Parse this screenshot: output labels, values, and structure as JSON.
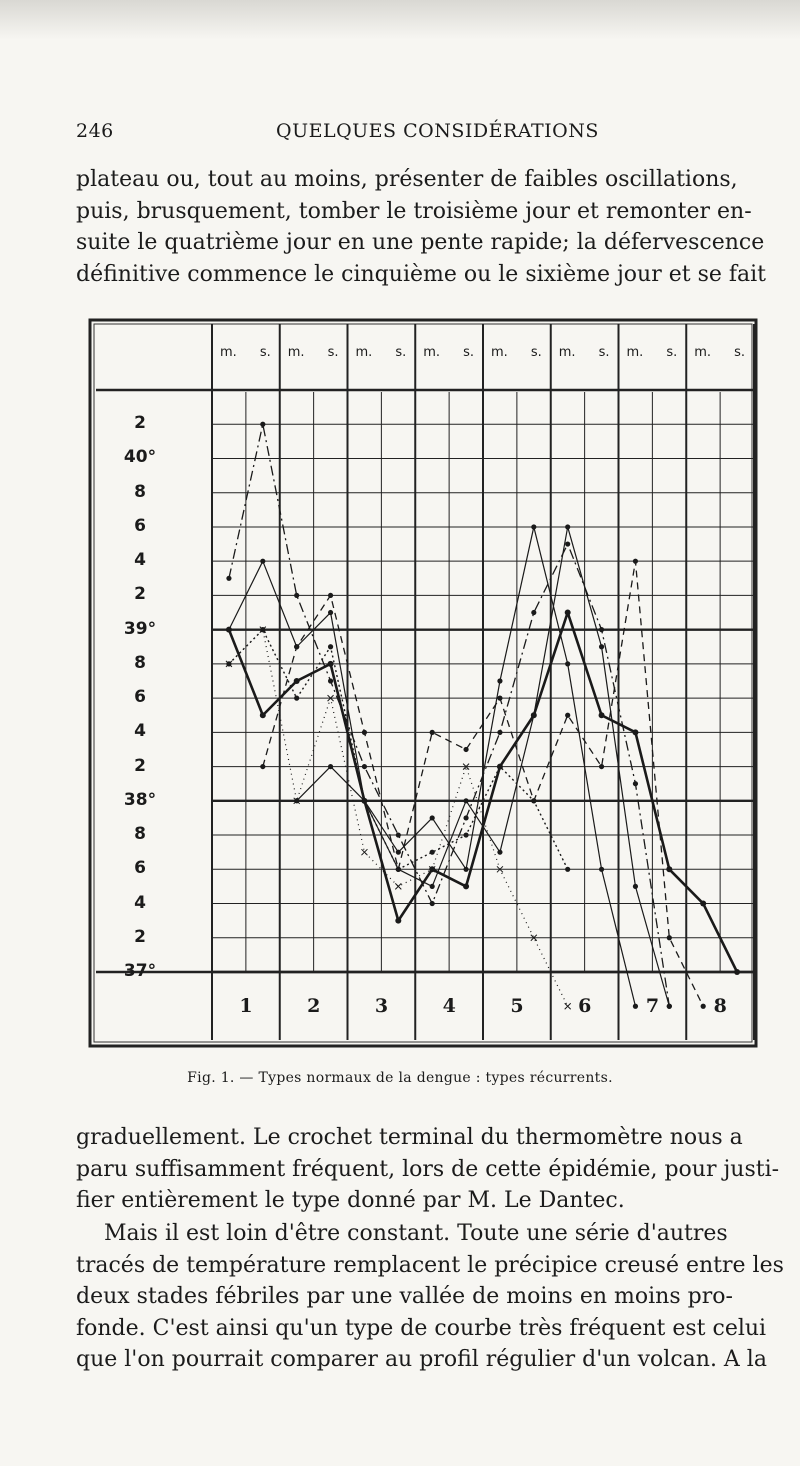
{
  "header": {
    "page_number": "246",
    "running_title": "QUELQUES CONSIDÉRATIONS"
  },
  "paragraph_1": {
    "lines": [
      "plateau ou, tout au moins, présenter de faibles oscillations,",
      "puis, brusquement, tomber le troisième jour et remonter en-",
      "suite le quatrième jour en une pente rapide; la défervescence",
      "définitive commence le cinquième ou le sixième jour et se fait"
    ]
  },
  "figure": {
    "column_headers": [
      "m.",
      "s.",
      "m.",
      "s.",
      "m.",
      "s.",
      "m.",
      "s.",
      "m.",
      "s.",
      "m.",
      "s.",
      "m.",
      "s.",
      "m.",
      "s."
    ],
    "day_labels": [
      "1",
      "2",
      "3",
      "4",
      "5",
      "6",
      "7",
      "8"
    ],
    "tick_labels": [
      "2",
      "40°",
      "8",
      "6",
      "4",
      "2",
      "39°",
      "8",
      "6",
      "4",
      "2",
      "38°",
      "8",
      "6",
      "4",
      "2",
      "37°"
    ],
    "caption": "Fig. 1. — Types normaux de la dengue : types récurrents."
  },
  "chart_data": {
    "type": "line",
    "title": "",
    "x_categories": [
      "1 m.",
      "1 s.",
      "2 m.",
      "2 s.",
      "3 m.",
      "3 s.",
      "4 m.",
      "4 s.",
      "5 m.",
      "5 s.",
      "6 m.",
      "6 s.",
      "7 m.",
      "7 s.",
      "8 m.",
      "8 s."
    ],
    "ylim": [
      37.0,
      40.4
    ],
    "y_unit": "°",
    "grid": true,
    "series": [
      {
        "style": "thick solid",
        "points": [
          [
            0,
            39.0
          ],
          [
            1,
            38.5
          ],
          [
            2,
            38.7
          ],
          [
            3,
            38.8
          ],
          [
            4,
            38.0
          ],
          [
            5,
            37.3
          ],
          [
            6,
            37.6
          ],
          [
            7,
            37.5
          ],
          [
            8,
            38.2
          ],
          [
            9,
            38.5
          ],
          [
            10,
            39.1
          ],
          [
            11,
            38.5
          ],
          [
            12,
            38.4
          ],
          [
            13,
            37.6
          ],
          [
            14,
            37.4
          ],
          [
            15,
            37.0
          ]
        ]
      },
      {
        "style": "thin solid",
        "points": [
          [
            0,
            39.0
          ],
          [
            1,
            39.4
          ],
          [
            2,
            38.9
          ],
          [
            3,
            39.1
          ],
          [
            4,
            38.0
          ],
          [
            5,
            37.7
          ],
          [
            6,
            37.9
          ],
          [
            7,
            37.6
          ],
          [
            8,
            38.7
          ],
          [
            9,
            39.6
          ],
          [
            10,
            38.8
          ],
          [
            11,
            37.6
          ],
          [
            12,
            36.8
          ]
        ]
      },
      {
        "style": "thin solid",
        "points": [
          [
            2,
            38.0
          ],
          [
            3,
            38.2
          ],
          [
            4,
            38.0
          ],
          [
            5,
            37.6
          ],
          [
            6,
            37.5
          ],
          [
            7,
            38.0
          ],
          [
            8,
            37.7
          ],
          [
            9,
            38.5
          ],
          [
            10,
            39.6
          ],
          [
            11,
            38.9
          ],
          [
            12,
            37.5
          ],
          [
            13,
            36.8
          ]
        ]
      },
      {
        "style": "dash-dot",
        "points": [
          [
            0,
            39.3
          ],
          [
            1,
            40.2
          ],
          [
            2,
            39.2
          ],
          [
            3,
            38.7
          ],
          [
            4,
            38.2
          ],
          [
            5,
            37.8
          ],
          [
            6,
            37.4
          ],
          [
            7,
            37.9
          ],
          [
            8,
            38.4
          ],
          [
            9,
            39.1
          ],
          [
            10,
            39.5
          ],
          [
            11,
            39.0
          ],
          [
            12,
            38.1
          ],
          [
            13,
            36.8
          ]
        ]
      },
      {
        "style": "dashed",
        "points": [
          [
            1,
            38.2
          ],
          [
            2,
            38.9
          ],
          [
            3,
            39.2
          ],
          [
            4,
            38.4
          ],
          [
            5,
            37.6
          ],
          [
            6,
            38.4
          ],
          [
            7,
            38.3
          ],
          [
            8,
            38.6
          ],
          [
            9,
            38.0
          ],
          [
            10,
            38.5
          ],
          [
            11,
            38.2
          ],
          [
            12,
            39.4
          ],
          [
            13,
            37.2
          ],
          [
            14,
            36.8
          ]
        ]
      },
      {
        "style": "dotted (points)",
        "points": [
          [
            0,
            38.8
          ],
          [
            1,
            39.0
          ],
          [
            2,
            38.6
          ],
          [
            3,
            38.9
          ],
          [
            4,
            38.0
          ],
          [
            5,
            37.6
          ],
          [
            6,
            37.7
          ],
          [
            7,
            37.8
          ],
          [
            8,
            38.2
          ],
          [
            9,
            38.0
          ],
          [
            10,
            37.6
          ]
        ]
      },
      {
        "style": "crossed",
        "points": [
          [
            0,
            38.8
          ],
          [
            1,
            39.0
          ],
          [
            2,
            38.0
          ],
          [
            3,
            38.6
          ],
          [
            4,
            37.7
          ],
          [
            5,
            37.5
          ],
          [
            6,
            37.6
          ],
          [
            7,
            38.2
          ],
          [
            8,
            37.6
          ],
          [
            9,
            37.2
          ],
          [
            10,
            36.8
          ]
        ]
      }
    ]
  },
  "paragraph_2": {
    "lines": [
      "graduellement. Le crochet terminal du thermomètre nous a",
      "paru suffisamment fréquent, lors de cette épidémie, pour justi-",
      "fier entièrement le type donné par M. Le Dantec."
    ]
  },
  "paragraph_3": {
    "lines": [
      "Mais il est loin d'être constant. Toute une série d'autres",
      "tracés de température remplacent le précipice creusé entre les",
      "deux stades fébriles par une vallée de moins en moins pro-",
      "fonde. C'est ainsi qu'un type de courbe très fréquent est celui",
      "que l'on pourrait comparer au profil régulier d'un volcan. A la"
    ]
  }
}
